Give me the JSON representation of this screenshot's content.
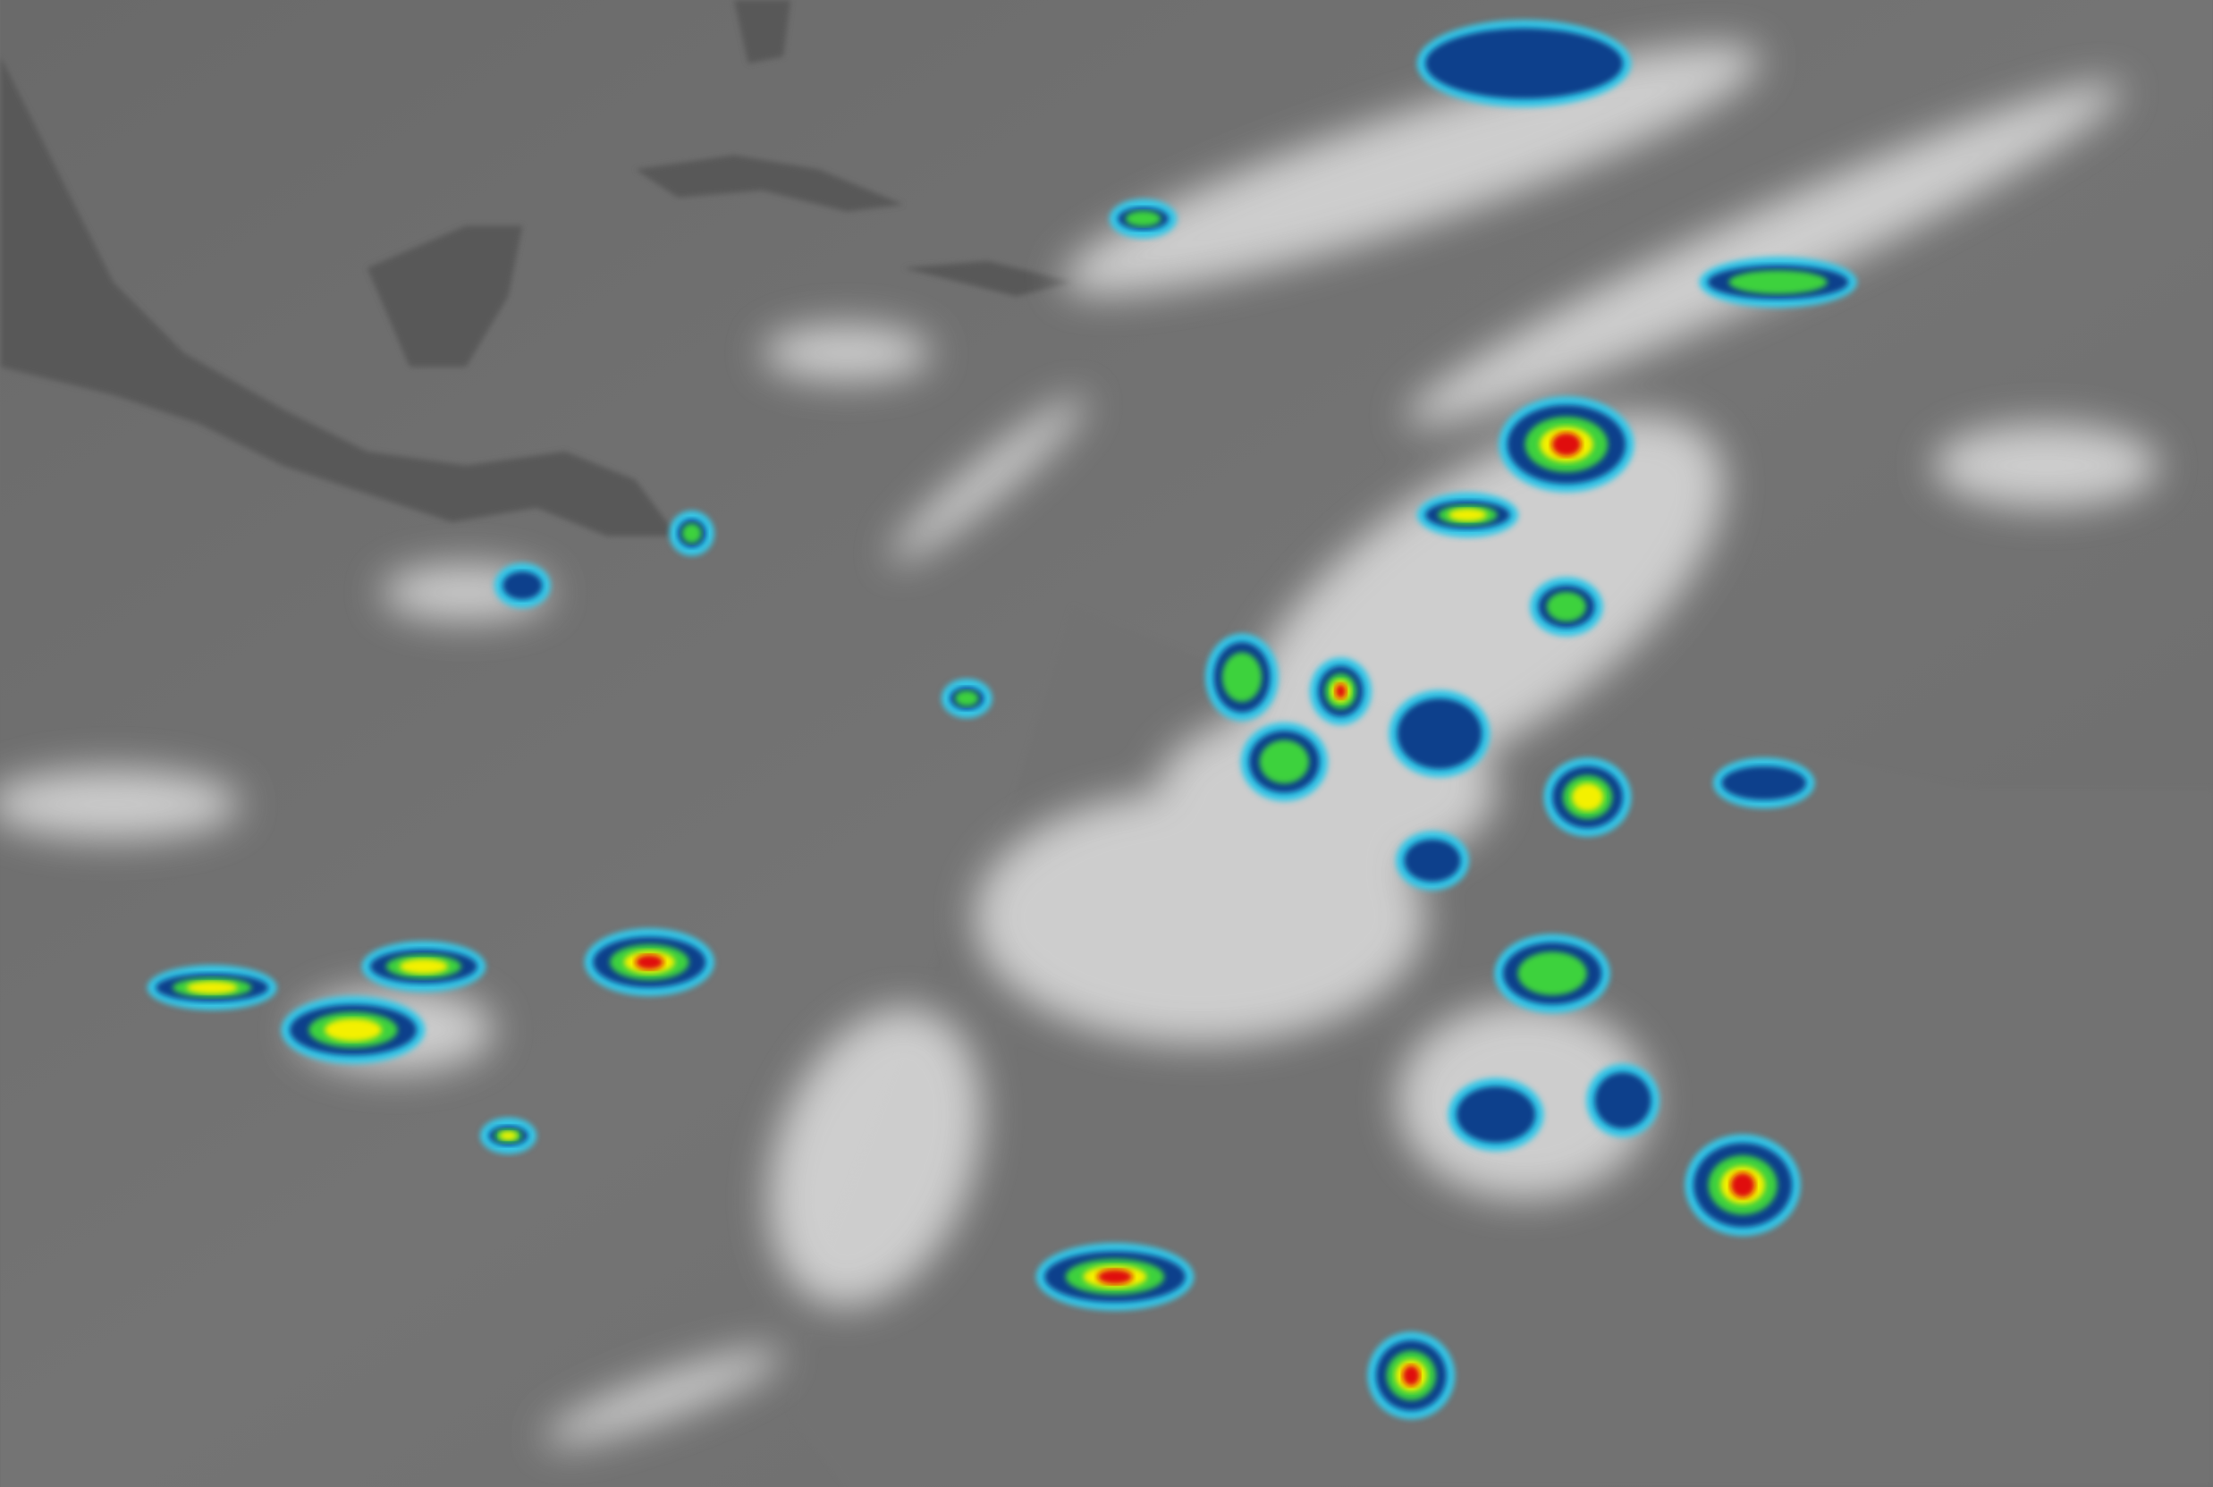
{
  "image": {
    "kind": "enhanced infrared satellite imagery",
    "colors": {
      "ocean": "#6f6f6f",
      "land": "#5a5a5a",
      "cloud_high": "#f2f2f2",
      "cold_cyan": "#36c8e8",
      "cold_blue": "#0a3f8c",
      "cold_green": "#3cd23c",
      "cold_yellow": "#f4f000",
      "cold_red": "#e01010",
      "cold_darkred": "#8a0010"
    }
  }
}
